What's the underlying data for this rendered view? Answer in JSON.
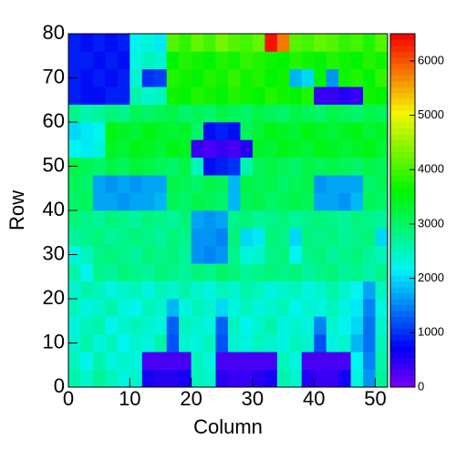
{
  "chart_data": {
    "type": "heatmap",
    "x_label": "Column",
    "y_label": "Row",
    "xlim": [
      0,
      52
    ],
    "ylim": [
      0,
      80
    ],
    "xticks": [
      0,
      10,
      20,
      30,
      40,
      50
    ],
    "yticks": [
      0,
      10,
      20,
      30,
      40,
      50,
      60,
      70,
      80
    ],
    "xbins": [
      0,
      2,
      4,
      6,
      8,
      10,
      12,
      14,
      16,
      18,
      20,
      22,
      24,
      26,
      28,
      30,
      32,
      34,
      36,
      38,
      40,
      42,
      44,
      46,
      48,
      50,
      52
    ],
    "ybins": [
      0,
      4,
      8,
      12,
      16,
      20,
      24,
      28,
      32,
      36,
      40,
      44,
      48,
      52,
      56,
      60,
      64,
      68,
      72,
      76,
      80
    ],
    "zlim": [
      0,
      6500
    ],
    "zticks": [
      0,
      1000,
      2000,
      3000,
      4000,
      5000,
      6000
    ],
    "palette": "rainbow",
    "z": [
      [
        2600,
        2400,
        2700,
        2500,
        2300,
        2400,
        600,
        500,
        500,
        600,
        2500,
        2400,
        500,
        400,
        400,
        500,
        600,
        2600,
        2400,
        500,
        400,
        400,
        600,
        2300,
        1600,
        2700
      ],
      [
        2500,
        2200,
        2600,
        2300,
        2400,
        2300,
        300,
        300,
        300,
        300,
        2500,
        2300,
        300,
        300,
        300,
        300,
        300,
        2500,
        2300,
        300,
        300,
        300,
        300,
        2200,
        1500,
        2600
      ],
      [
        2400,
        2600,
        2300,
        2500,
        2200,
        2400,
        2300,
        2600,
        1200,
        2400,
        2300,
        2500,
        1200,
        2400,
        2300,
        2500,
        2400,
        2300,
        2500,
        2400,
        1200,
        2300,
        2400,
        1800,
        1400,
        2500
      ],
      [
        2300,
        2500,
        2600,
        2200,
        2400,
        2500,
        2400,
        2300,
        1300,
        2500,
        2400,
        2300,
        1300,
        2500,
        2200,
        2400,
        2600,
        2300,
        2400,
        2300,
        1500,
        2400,
        2200,
        2000,
        1400,
        2400
      ],
      [
        2500,
        2300,
        2400,
        2600,
        2300,
        2200,
        2500,
        2400,
        1800,
        2300,
        2500,
        2400,
        2000,
        2300,
        2500,
        2300,
        2400,
        2500,
        2200,
        2400,
        2300,
        2500,
        2300,
        2100,
        1500,
        2300
      ],
      [
        2400,
        2600,
        2500,
        2300,
        2400,
        2500,
        2300,
        2500,
        2400,
        2600,
        2400,
        2300,
        2500,
        2400,
        2600,
        2500,
        2300,
        2400,
        2500,
        2300,
        2400,
        2600,
        2400,
        2200,
        1700,
        2500
      ],
      [
        2600,
        2200,
        2800,
        2700,
        2900,
        2800,
        2700,
        2900,
        2800,
        2700,
        2900,
        2800,
        3000,
        2900,
        2700,
        2800,
        2900,
        2800,
        2900,
        2700,
        2800,
        2900,
        2700,
        2800,
        2600,
        2800
      ],
      [
        2300,
        2500,
        2800,
        2900,
        2800,
        2700,
        2900,
        2800,
        2900,
        2700,
        1600,
        1500,
        1600,
        2800,
        2300,
        2400,
        2800,
        2900,
        2200,
        2800,
        2900,
        2700,
        2800,
        2900,
        2700,
        2500
      ],
      [
        2700,
        2800,
        2900,
        2700,
        2800,
        2900,
        2800,
        2700,
        2900,
        2800,
        1600,
        1600,
        1500,
        2900,
        2000,
        2100,
        2900,
        2800,
        2000,
        2900,
        2800,
        2900,
        2700,
        2800,
        2900,
        2000
      ],
      [
        2900,
        2800,
        2700,
        2900,
        2800,
        2700,
        2900,
        2800,
        2700,
        2900,
        1700,
        1600,
        1700,
        2800,
        2900,
        2700,
        2800,
        2900,
        2700,
        2800,
        2900,
        2800,
        2700,
        2900,
        2800,
        2700
      ],
      [
        3000,
        3100,
        1700,
        1700,
        1600,
        1700,
        1700,
        1800,
        3100,
        3000,
        3200,
        3100,
        3000,
        1800,
        3100,
        3200,
        3000,
        3100,
        3200,
        3100,
        1700,
        1700,
        1600,
        1800,
        3100,
        3000
      ],
      [
        3100,
        3000,
        1700,
        1600,
        1700,
        1600,
        1700,
        1700,
        3200,
        3100,
        3000,
        3200,
        3100,
        1800,
        3200,
        3100,
        3200,
        3000,
        3100,
        3200,
        1600,
        1700,
        1700,
        1700,
        3000,
        3100
      ],
      [
        3200,
        3100,
        3000,
        3200,
        3100,
        3300,
        3200,
        3100,
        3000,
        3200,
        2500,
        800,
        900,
        1000,
        2600,
        3100,
        3200,
        3100,
        3000,
        3200,
        3100,
        3200,
        3100,
        3000,
        3200,
        3100
      ],
      [
        2200,
        2100,
        2300,
        3400,
        3300,
        3500,
        3400,
        3300,
        3500,
        3400,
        400,
        300,
        400,
        300,
        500,
        3400,
        3300,
        3500,
        3400,
        3300,
        3500,
        3400,
        3300,
        3400,
        3500,
        3300
      ],
      [
        2000,
        2100,
        2200,
        3500,
        3400,
        3300,
        3500,
        3400,
        3300,
        3400,
        3000,
        800,
        900,
        800,
        3100,
        3300,
        3500,
        3400,
        3300,
        3500,
        3400,
        3300,
        3400,
        3500,
        3300,
        3400
      ],
      [
        2800,
        2600,
        2700,
        2900,
        2800,
        3100,
        3000,
        3100,
        3200,
        3000,
        3100,
        3000,
        3200,
        3100,
        3000,
        3200,
        3100,
        3000,
        3200,
        3100,
        3000,
        3200,
        3100,
        3000,
        3200,
        3100
      ],
      [
        900,
        800,
        800,
        900,
        900,
        2600,
        2400,
        2500,
        3700,
        3600,
        3800,
        3700,
        3600,
        3800,
        3700,
        3600,
        3800,
        3700,
        3600,
        3800,
        400,
        400,
        500,
        400,
        3700,
        3600
      ],
      [
        900,
        800,
        900,
        800,
        900,
        2400,
        1000,
        1100,
        3800,
        3700,
        3600,
        3800,
        3700,
        3900,
        3700,
        3800,
        3600,
        3700,
        1800,
        2000,
        3600,
        1600,
        3700,
        3800,
        3600,
        3900
      ],
      [
        900,
        900,
        800,
        900,
        800,
        2300,
        2500,
        2400,
        3600,
        3800,
        3700,
        3600,
        3800,
        3700,
        3900,
        3800,
        3700,
        3600,
        3800,
        3700,
        3600,
        3800,
        3700,
        3600,
        3800,
        3700
      ],
      [
        900,
        800,
        900,
        800,
        900,
        2200,
        2300,
        2100,
        4100,
        3900,
        4200,
        4000,
        4300,
        4100,
        4000,
        4200,
        6400,
        5800,
        4100,
        4000,
        4200,
        4100,
        3900,
        4000,
        3800,
        4100
      ]
    ]
  }
}
